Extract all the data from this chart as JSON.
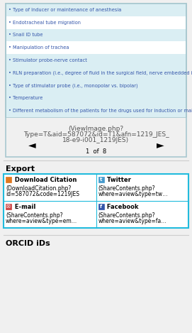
{
  "bg_color": "#f0f0f0",
  "box_bg_color": "#ffffff",
  "box_border_color": "#a8c8d0",
  "row_colors": [
    "#daeef3",
    "#ffffff",
    "#daeef3",
    "#ffffff",
    "#daeef3",
    "#daeef3",
    "#daeef3",
    "#daeef3",
    "#daeef3"
  ],
  "bullet_items": [
    "• Type of inducer or maintenance of anesthesia",
    "• Endotracheal tube migration",
    "• Snail ID tube",
    "• Manipulation of trachea",
    "• Stimulator probe-nerve contact",
    "• RLN preparation (i.e., degree of fluid in the surgical field, nerve embedded in fascia)",
    "• Type of stimulator probe (i.e., monopolar vs. bipolar)",
    "• Temperature",
    "• Different metabolism of the patients for the drugs used for induction or maintenance of anesthesia"
  ],
  "text_color": "#3355aa",
  "caption_line1": "(ViewImage.php?",
  "caption_line2": "Type=T&aid=587072&id=T1&afn=1219_JES_",
  "caption_line3": "18-e9-i001_1219JES)",
  "nav_left": "◄",
  "nav_right": "►",
  "page_info": "1  of  8",
  "caption_color": "#555555",
  "export_title": "Export",
  "export_border_color": "#22bbdd",
  "export_cells": [
    {
      "icon": "→",
      "icon_color": "#e07820",
      "icon_bg": "#e07820",
      "title": " Download Citation",
      "line1": "(DownloadCitation.php?",
      "line2": "id=587072&code=1219JES"
    },
    {
      "icon": "t",
      "icon_color": "#ffffff",
      "icon_bg": "#4499cc",
      "title": " Twitter",
      "line1": "(ShareContents.php?",
      "line2": "where=aview&type=tw…"
    },
    {
      "icon": "✉",
      "icon_color": "#ffffff",
      "icon_bg": "#cc4444",
      "title": " E-mail",
      "line1": "(ShareContents.php?",
      "line2": "where=aview&type=em…"
    },
    {
      "icon": "f",
      "icon_color": "#ffffff",
      "icon_bg": "#3355aa",
      "title": " Facebook",
      "line1": "(ShareContents.php?",
      "line2": "where=aview&type=fa…"
    }
  ],
  "orcid_text": "ORCID iDs",
  "item_font_size": 4.8,
  "caption_font_size": 6.5,
  "nav_font_size": 10,
  "page_font_size": 6,
  "export_title_font_size": 8,
  "cell_title_font_size": 6,
  "cell_text_font_size": 5.5,
  "icon_font_size": 5,
  "orcid_font_size": 8
}
